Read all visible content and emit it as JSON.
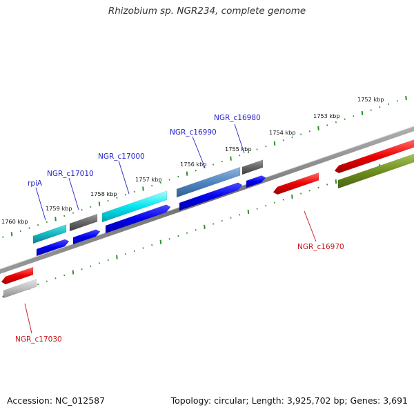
{
  "title": "Rhizobium sp. NGR234, complete genome",
  "footer": {
    "accession": "Accession: NC_012587",
    "topology": "Topology: circular; Length: 3,925,702 bp; Genes: 3,691"
  },
  "colors": {
    "backbone": "#888888",
    "ticks": "#2f8f2f",
    "top_strand_label": "#2222cc",
    "bottom_strand_label": "#cc1111"
  },
  "scale_labels": [
    "1752 kbp",
    "1753 kbp",
    "1754 kbp",
    "1755 kbp",
    "1756 kbp",
    "1757 kbp",
    "1758 kbp",
    "1759 kbp",
    "1760 kbp"
  ],
  "gene_labels": [
    "rpiA",
    "NGR_c17010",
    "NGR_c17000",
    "NGR_c16990",
    "NGR_c16980",
    "NGR_c16970",
    "NGR_c17030"
  ]
}
